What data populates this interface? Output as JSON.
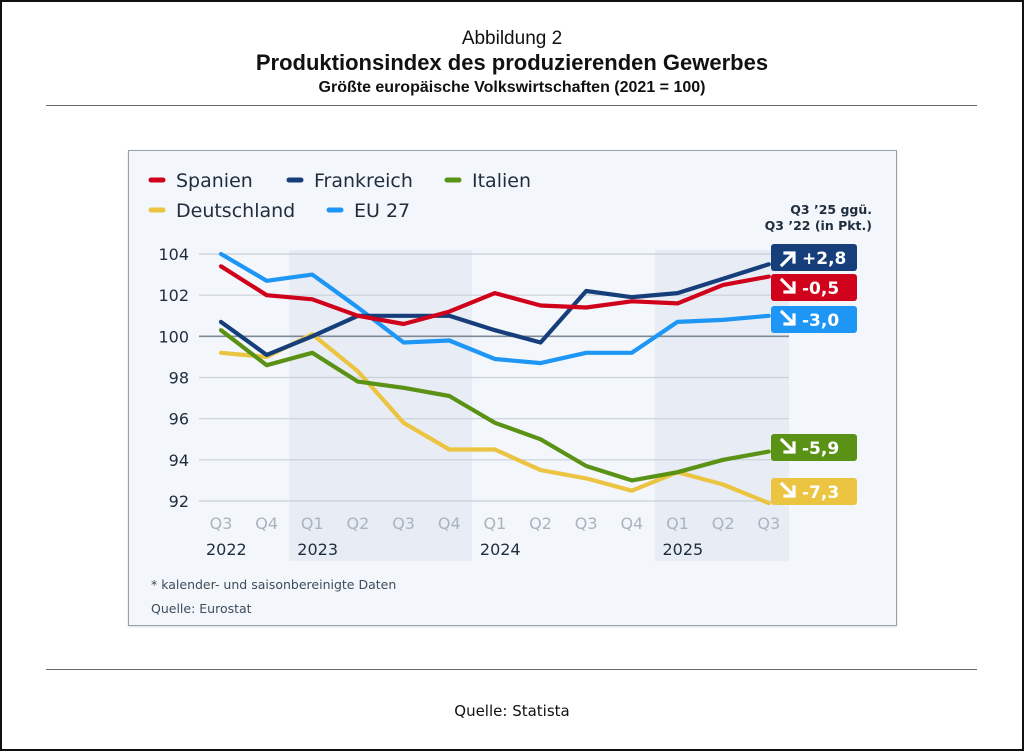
{
  "figure": {
    "number_label": "Abbildung 2",
    "title": "Produktionsindex des produzierenden Gewerbes",
    "subtitle": "Größte europäische Volkswirtschaften (2021 = 100)",
    "source": "Quelle: Statista"
  },
  "chart_data": {
    "type": "line",
    "title": "Produktionsindex des produzierenden Gewerbes",
    "subtitle": "Größte europäische Volkswirtschaften (2021 = 100)",
    "xlabel": "",
    "ylabel": "",
    "x": [
      "Q3 2022",
      "Q4 2022",
      "Q1 2023",
      "Q2 2023",
      "Q3 2023",
      "Q4 2023",
      "Q1 2024",
      "Q2 2024",
      "Q3 2024",
      "Q4 2024",
      "Q1 2025",
      "Q2 2025",
      "Q3 2025"
    ],
    "x_quarter_labels": [
      "Q3",
      "Q4",
      "Q1",
      "Q2",
      "Q3",
      "Q4",
      "Q1",
      "Q2",
      "Q3",
      "Q4",
      "Q1",
      "Q2",
      "Q3"
    ],
    "x_year_labels": [
      {
        "label": "2022",
        "start_index": 0
      },
      {
        "label": "2023",
        "start_index": 2
      },
      {
        "label": "2024",
        "start_index": 6
      },
      {
        "label": "2025",
        "start_index": 10
      }
    ],
    "shaded_years": [
      [
        2,
        5
      ],
      [
        10,
        12
      ]
    ],
    "yticks": [
      92,
      94,
      96,
      98,
      100,
      102,
      104
    ],
    "ylim": [
      92,
      104
    ],
    "reference_line": 100,
    "grid": true,
    "legend_position": "top-left",
    "series": [
      {
        "name": "Spanien",
        "color": "#d0021b",
        "values": [
          103.4,
          102.0,
          101.8,
          101.0,
          100.6,
          101.2,
          102.1,
          101.5,
          101.4,
          101.7,
          101.6,
          102.5,
          102.9
        ],
        "change": "-0,5",
        "direction": "down"
      },
      {
        "name": "Frankreich",
        "color": "#163e7a",
        "values": [
          100.7,
          99.1,
          100.0,
          101.0,
          101.0,
          101.0,
          100.3,
          99.7,
          102.2,
          101.9,
          102.1,
          102.8,
          103.5
        ],
        "change": "+2,8",
        "direction": "up"
      },
      {
        "name": "Italien",
        "color": "#5a9216",
        "values": [
          100.3,
          98.6,
          99.2,
          97.8,
          97.5,
          97.1,
          95.8,
          95.0,
          93.7,
          93.0,
          93.4,
          94.0,
          94.4
        ],
        "change": "-5,9",
        "direction": "down"
      },
      {
        "name": "Deutschland",
        "color": "#ebc442",
        "values": [
          99.2,
          99.0,
          100.1,
          98.3,
          95.8,
          94.5,
          94.5,
          93.5,
          93.1,
          92.5,
          93.4,
          92.8,
          91.9
        ],
        "change": "-7,3",
        "direction": "down"
      },
      {
        "name": "EU 27",
        "color": "#1e96f5",
        "values": [
          104.0,
          102.7,
          103.0,
          101.4,
          99.7,
          99.8,
          98.9,
          98.7,
          99.2,
          99.2,
          100.7,
          100.8,
          101.0
        ],
        "change": "-3,0",
        "direction": "down"
      }
    ],
    "legend_order": [
      "Spanien",
      "Frankreich",
      "Italien",
      "Deutschland",
      "EU 27"
    ],
    "badge_header": [
      "Q3 ’25 ggü.",
      "Q3 ’22 (in Pkt.)"
    ],
    "badge_order": [
      "Frankreich",
      "Spanien",
      "EU 27",
      "Italien",
      "Deutschland"
    ],
    "notes": [
      "* kalender- und saisonbereinigte Daten",
      "Quelle: Eurostat"
    ]
  }
}
